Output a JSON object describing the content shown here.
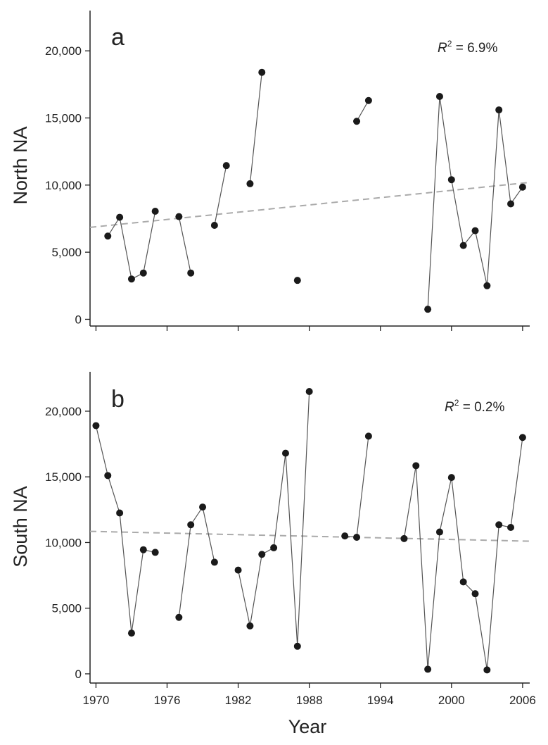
{
  "x_axis": {
    "title": "Year",
    "tick_values": [
      1970,
      1976,
      1982,
      1988,
      1994,
      2000,
      2006
    ],
    "tick_labels": [
      "1970",
      "1976",
      "1982",
      "1988",
      "1994",
      "2000",
      "2006"
    ],
    "range": [
      1969.5,
      2006.6
    ]
  },
  "colors": {
    "points": "#1a1a1a",
    "lines": "#555555",
    "trend": "#aaaaaa",
    "axes": "#222222"
  },
  "chart_data": [
    {
      "type": "scatter",
      "panel": "a",
      "ylabel": "North NA",
      "r2_var": "R",
      "r2_sup": "2",
      "r2_value": " = 6.9%",
      "ylim": [
        -500,
        23000
      ],
      "y_ticks": [
        0,
        5000,
        10000,
        15000,
        20000
      ],
      "y_tick_labels": [
        "0",
        "5,000",
        "10,000",
        "15,000",
        "20,000"
      ],
      "trend": {
        "x": [
          1969.5,
          2006.6
        ],
        "y": [
          6850,
          10200
        ]
      },
      "segments": [
        [
          [
            1971,
            6200
          ],
          [
            1972,
            7600
          ],
          [
            1973,
            3000
          ],
          [
            1974,
            3450
          ],
          [
            1975,
            8050
          ]
        ],
        [
          [
            1977,
            7650
          ],
          [
            1978,
            3450
          ]
        ],
        [
          [
            1980,
            7000
          ],
          [
            1981,
            11450
          ]
        ],
        [
          [
            1983,
            10100
          ],
          [
            1984,
            18400
          ]
        ],
        [
          [
            1987,
            2900
          ]
        ],
        [
          [
            1992,
            14750
          ],
          [
            1993,
            16300
          ]
        ],
        [
          [
            1998,
            750
          ],
          [
            1999,
            16600
          ],
          [
            2000,
            10400
          ],
          [
            2001,
            5500
          ],
          [
            2002,
            6600
          ],
          [
            2003,
            2500
          ],
          [
            2004,
            15600
          ],
          [
            2005,
            8600
          ],
          [
            2006,
            9850
          ]
        ]
      ]
    },
    {
      "type": "scatter",
      "panel": "b",
      "ylabel": "South NA",
      "r2_var": "R",
      "r2_sup": "2",
      "r2_value": " = 0.2%",
      "ylim": [
        -700,
        23000
      ],
      "y_ticks": [
        0,
        5000,
        10000,
        15000,
        20000
      ],
      "y_tick_labels": [
        "0",
        "5,000",
        "10,000",
        "15,000",
        "20,000"
      ],
      "trend": {
        "x": [
          1969.5,
          2006.6
        ],
        "y": [
          10850,
          10100
        ]
      },
      "segments": [
        [
          [
            1970,
            18900
          ],
          [
            1971,
            15100
          ],
          [
            1972,
            12250
          ],
          [
            1973,
            3100
          ],
          [
            1974,
            9450
          ],
          [
            1975,
            9250
          ]
        ],
        [
          [
            1977,
            4300
          ],
          [
            1978,
            11350
          ],
          [
            1979,
            12700
          ],
          [
            1980,
            8500
          ]
        ],
        [
          [
            1982,
            7900
          ],
          [
            1983,
            3650
          ],
          [
            1984,
            9100
          ],
          [
            1985,
            9600
          ],
          [
            1986,
            16800
          ],
          [
            1987,
            2100
          ],
          [
            1988,
            21500
          ]
        ],
        [
          [
            1991,
            10500
          ],
          [
            1992,
            10400
          ],
          [
            1993,
            18100
          ]
        ],
        [
          [
            1996,
            10300
          ],
          [
            1997,
            15850
          ],
          [
            1998,
            350
          ],
          [
            1999,
            10800
          ],
          [
            2000,
            14950
          ],
          [
            2001,
            7000
          ],
          [
            2002,
            6100
          ],
          [
            2003,
            300
          ],
          [
            2004,
            11350
          ],
          [
            2005,
            11150
          ],
          [
            2006,
            18000
          ]
        ]
      ]
    }
  ]
}
